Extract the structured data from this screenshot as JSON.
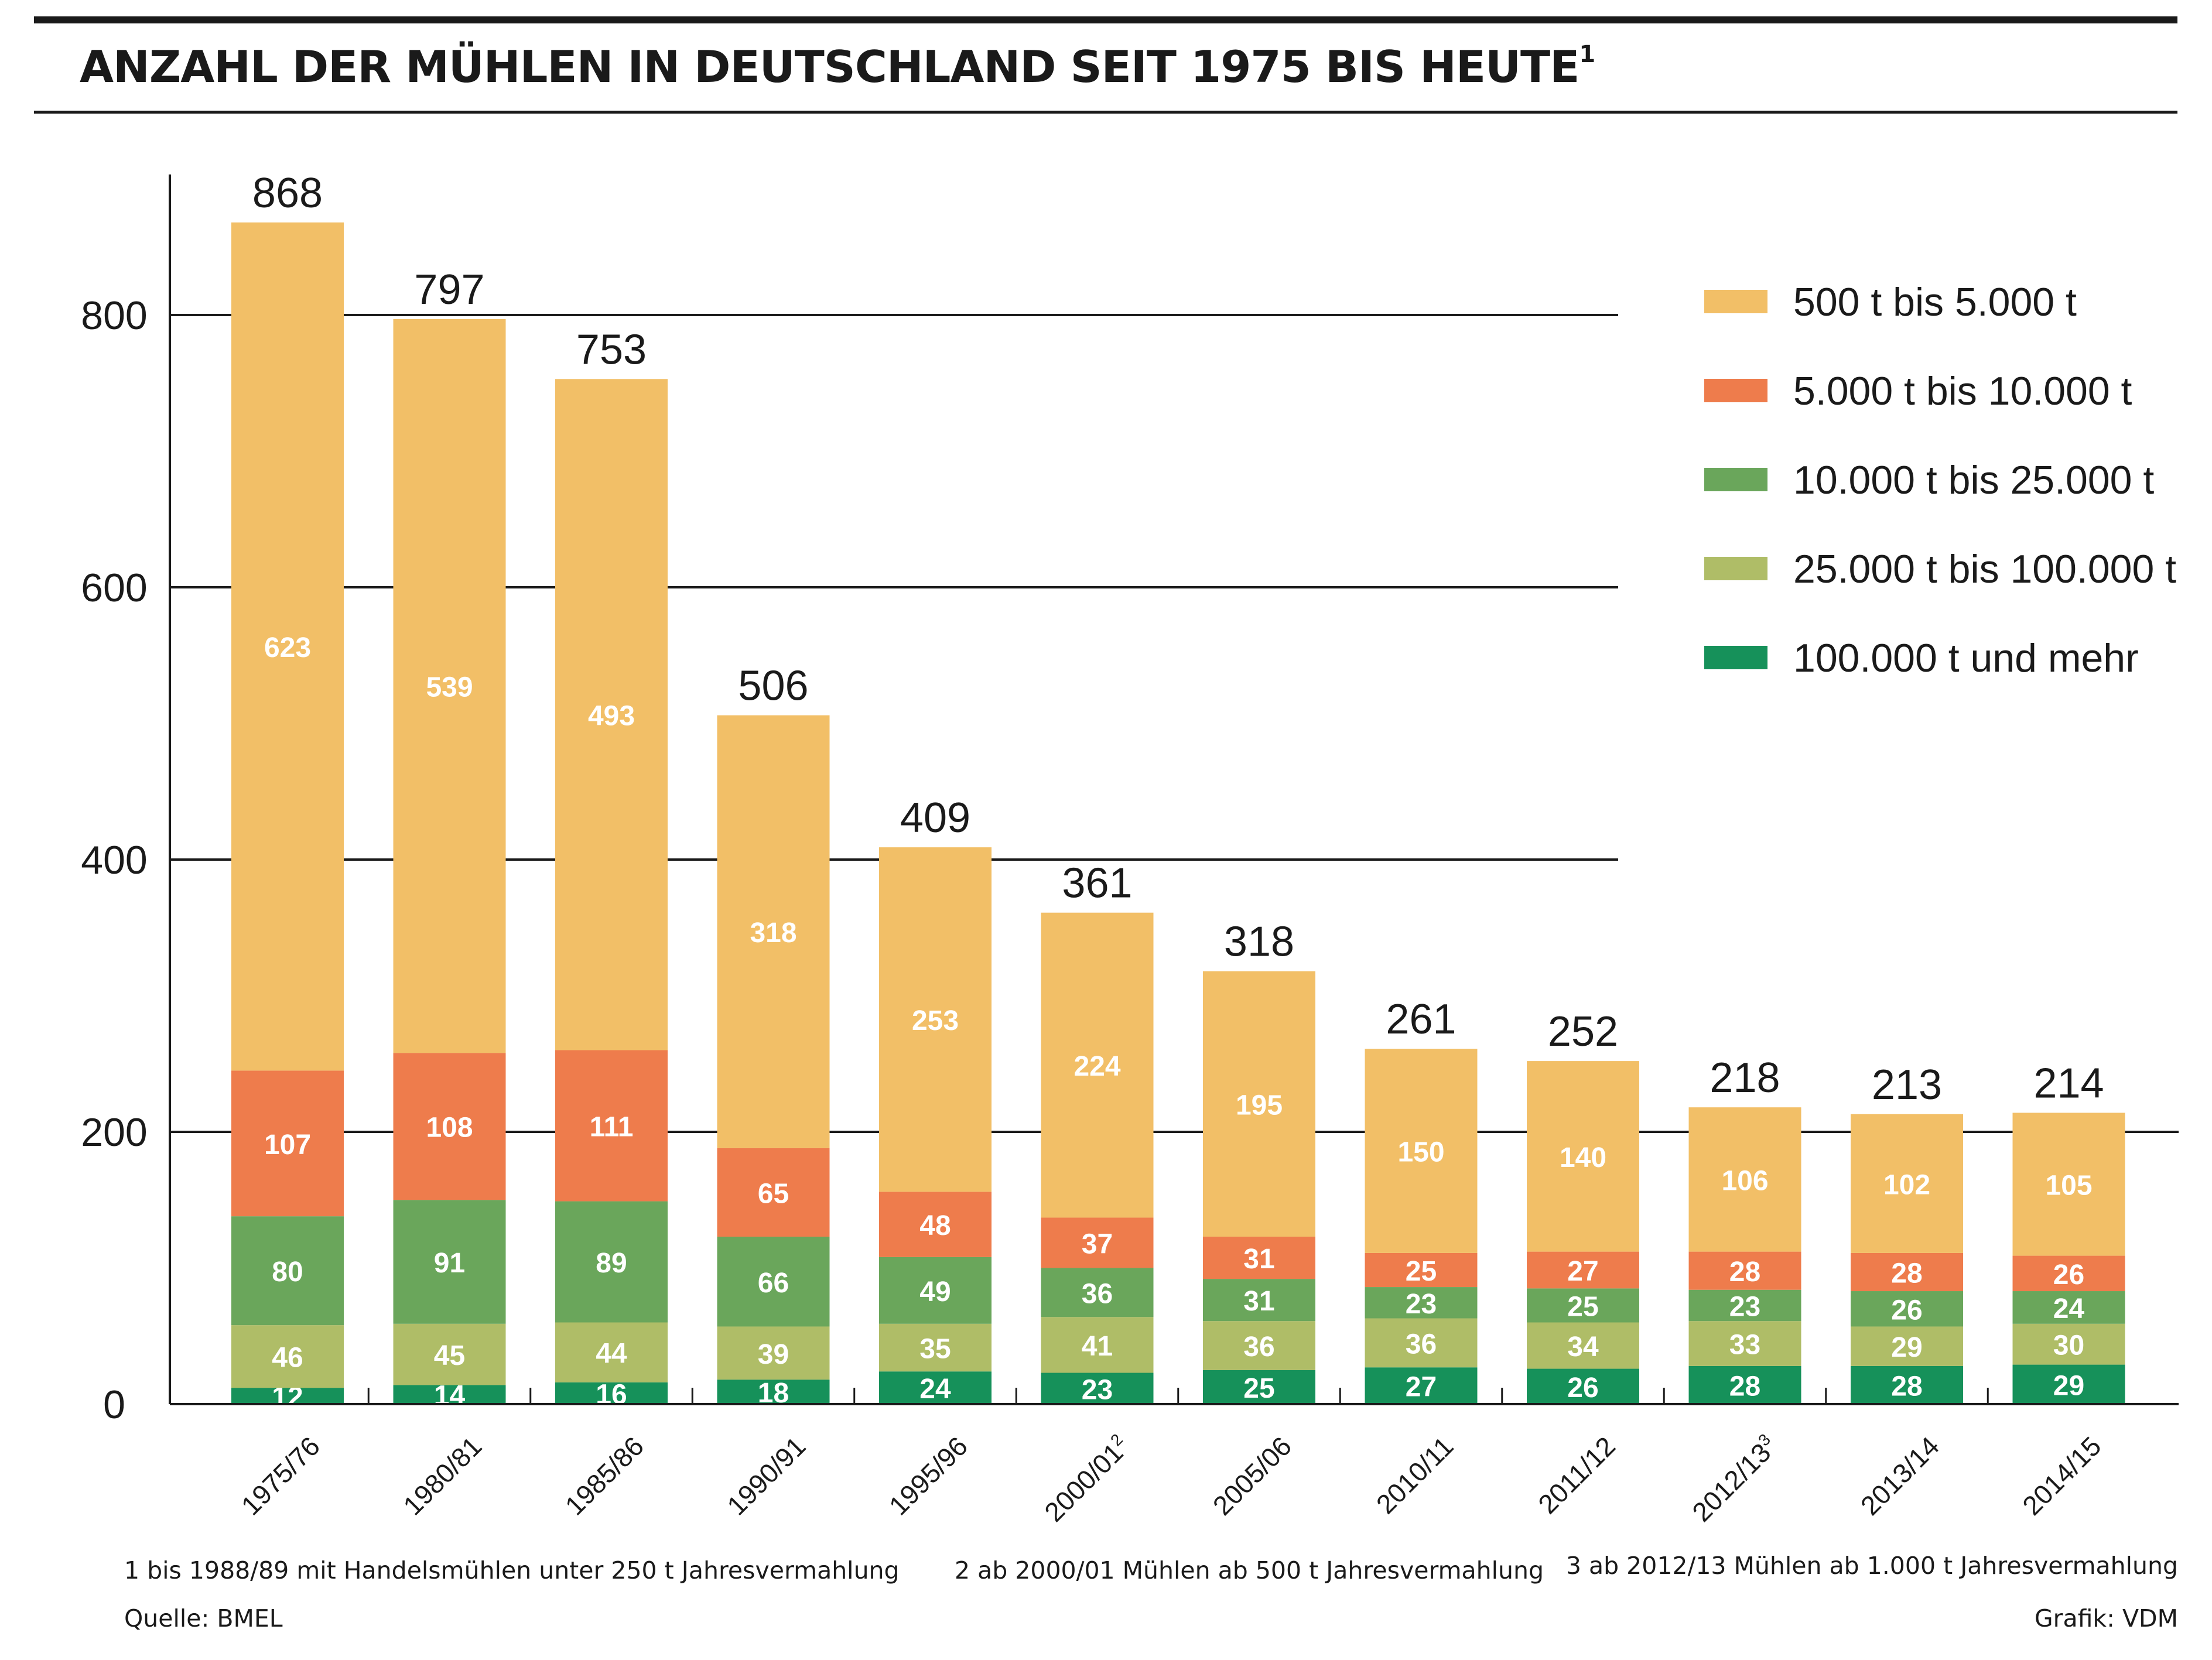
{
  "title": "ANZAHL DER MÜHLEN IN DEUTSCHLAND SEIT 1975 BIS HEUTE",
  "title_sup": "1",
  "footnotes": {
    "note1": "1 bis 1988/89 mit Handelsmühlen unter 250 t  Jahresvermahlung",
    "note2": "2 ab 2000/01 Mühlen ab 500 t Jahresvermahlung",
    "note3": "3 ab 2012/13 Mühlen ab 1.000 t Jahresvermahlung",
    "source": "Quelle: BMEL",
    "credit": "Grafik: VDM"
  },
  "chart_data": {
    "type": "bar",
    "stacked": true,
    "title": "ANZAHL DER MÜHLEN IN DEUTSCHLAND SEIT 1975 BIS HEUTE",
    "categories": [
      "1975/76",
      "1980/81",
      "1985/86",
      "1990/91",
      "1995/96",
      "2000/01",
      "2005/06",
      "2010/11",
      "2011/12",
      "2012/13",
      "2013/14",
      "2014/15"
    ],
    "category_sup": [
      "",
      "",
      "",
      "",
      "",
      "2",
      "",
      "",
      "",
      "3",
      "",
      ""
    ],
    "totals": [
      868,
      797,
      753,
      506,
      409,
      361,
      318,
      261,
      252,
      218,
      213,
      214
    ],
    "series": [
      {
        "name": "100.000 t und mehr",
        "color": "#16915a",
        "values": [
          12,
          14,
          16,
          18,
          24,
          23,
          25,
          27,
          26,
          28,
          28,
          29
        ]
      },
      {
        "name": "25.000 t bis 100.000 t",
        "color": "#afbd67",
        "values": [
          46,
          45,
          44,
          39,
          35,
          41,
          36,
          36,
          34,
          33,
          29,
          30
        ]
      },
      {
        "name": "10.000 t bis 25.000 t",
        "color": "#6aa65b",
        "values": [
          80,
          91,
          89,
          66,
          49,
          36,
          31,
          23,
          25,
          23,
          26,
          24
        ]
      },
      {
        "name": "5.000 t bis 10.000 t",
        "color": "#ee7c4c",
        "values": [
          107,
          108,
          111,
          65,
          48,
          37,
          31,
          25,
          27,
          28,
          28,
          26
        ]
      },
      {
        "name": "500 t bis 5.000 t",
        "color": "#f2bf67",
        "values": [
          623,
          539,
          493,
          318,
          253,
          224,
          195,
          150,
          140,
          106,
          102,
          105
        ]
      }
    ],
    "legend_order": [
      "500 t bis 5.000 t",
      "5.000 t bis 10.000 t",
      "10.000 t bis 25.000 t",
      "25.000 t bis 100.000 t",
      "100.000 t und mehr"
    ],
    "yticks": [
      0,
      200,
      400,
      600,
      800
    ],
    "ylim": [
      0,
      900
    ],
    "grid": true,
    "legend_position": "top-right"
  }
}
